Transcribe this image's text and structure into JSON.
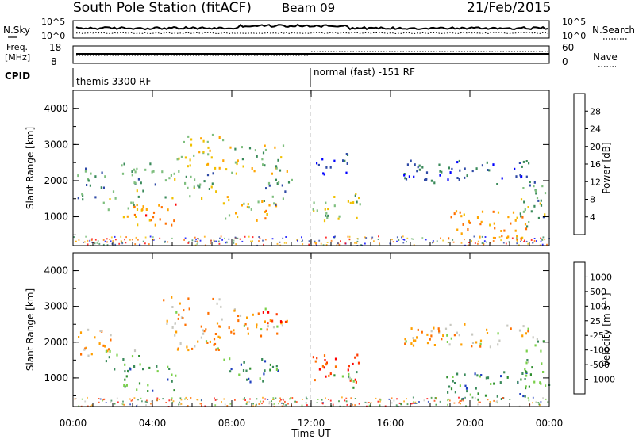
{
  "header": {
    "title": "South Pole Station (fitACF)",
    "beam": "Beam 09",
    "date": "21/Feb/2015"
  },
  "noise_panel": {
    "left_label": "N.Sky",
    "right_label": "N.Search",
    "left_ticks": [
      "10^5",
      "10^0"
    ],
    "right_ticks": [
      "10^5",
      "10^0"
    ]
  },
  "freq_panel": {
    "left_label_line1": "Freq.",
    "left_label_line2": "[MHz]",
    "right_label": "Nave",
    "left_ticks": [
      "18",
      "8"
    ],
    "right_ticks": [
      "60",
      "0"
    ]
  },
  "cpid": {
    "label": "CPID",
    "segments": [
      {
        "start_hour": 0,
        "text": "themis 3300 RF"
      },
      {
        "start_hour": 12,
        "text": "normal (fast) -151 RF"
      }
    ]
  },
  "chart_data": [
    {
      "type": "heatmap",
      "title": "",
      "ylabel": "Slant Range [km]",
      "ylim": [
        200,
        4500
      ],
      "yticks": [
        "1000",
        "2000",
        "3000",
        "4000"
      ],
      "xlim": [
        0,
        24
      ],
      "xticks": [
        "00:00",
        "04:00",
        "08:00",
        "12:00",
        "16:00",
        "20:00",
        "00:00"
      ],
      "colorbar": {
        "label": "Power [dB]",
        "ticks": [
          "28",
          "24",
          "20",
          "16",
          "12",
          "8",
          "4"
        ],
        "colors": [
          "#ff0000",
          "#ff6f00",
          "#ffa500",
          "#f0c000",
          "#7fbf7f",
          "#3a8a5a",
          "#2f4aa6",
          "#0000ff"
        ]
      },
      "regions": [
        {
          "t0": 0.2,
          "t1": 1.8,
          "r0": 1500,
          "r1": 2400,
          "level": 0.35
        },
        {
          "t0": 1.5,
          "t1": 3.5,
          "r0": 1200,
          "r1": 1800,
          "level": 0.45
        },
        {
          "t0": 2.5,
          "t1": 5.2,
          "r0": 650,
          "r1": 1400,
          "level": 0.75
        },
        {
          "t0": 2.0,
          "t1": 4.5,
          "r0": 1900,
          "r1": 2500,
          "level": 0.3
        },
        {
          "t0": 4.5,
          "t1": 7.2,
          "r0": 1500,
          "r1": 2300,
          "level": 0.4
        },
        {
          "t0": 5.2,
          "t1": 7.6,
          "r0": 2300,
          "r1": 3300,
          "level": 0.55
        },
        {
          "t0": 7.5,
          "t1": 10.2,
          "r0": 900,
          "r1": 1600,
          "level": 0.6
        },
        {
          "t0": 7.6,
          "t1": 10.8,
          "r0": 2200,
          "r1": 3000,
          "level": 0.5
        },
        {
          "t0": 9.5,
          "t1": 11.0,
          "r0": 1300,
          "r1": 2100,
          "level": 0.35
        },
        {
          "t0": 12.0,
          "t1": 14.5,
          "r0": 900,
          "r1": 1700,
          "level": 0.45
        },
        {
          "t0": 12.2,
          "t1": 14.0,
          "r0": 2200,
          "r1": 2800,
          "level": 0.2
        },
        {
          "t0": 16.5,
          "t1": 23.0,
          "r0": 1900,
          "r1": 2600,
          "level": 0.2
        },
        {
          "t0": 18.8,
          "t1": 23.0,
          "r0": 400,
          "r1": 1200,
          "level": 0.7
        },
        {
          "t0": 22.5,
          "t1": 24.0,
          "r0": 700,
          "r1": 2200,
          "level": 0.35
        }
      ]
    },
    {
      "type": "heatmap",
      "title": "",
      "ylabel": "Slant Range [km]",
      "ylim": [
        200,
        4500
      ],
      "yticks": [
        "1000",
        "2000",
        "3000",
        "4000"
      ],
      "xlim": [
        0,
        24
      ],
      "xticks": [
        "00:00",
        "04:00",
        "08:00",
        "12:00",
        "16:00",
        "20:00",
        "00:00"
      ],
      "xlabel": "Time UT",
      "colorbar": {
        "label": "Velocity [m s⁻¹]",
        "ticks": [
          "1000",
          "500",
          "100",
          "25",
          "-25",
          "-100",
          "-500",
          "-1000"
        ],
        "colors": [
          "#2040c0",
          "#3a8a5a",
          "#2f8f2f",
          "#7ad04a",
          "#c8c8c0",
          "#ff9f00",
          "#ff7000",
          "#ff3a00",
          "#ff0000"
        ]
      },
      "regions": [
        {
          "t0": 0.2,
          "t1": 2.0,
          "r0": 1500,
          "r1": 2400,
          "level": 0.35
        },
        {
          "t0": 1.5,
          "t1": 3.5,
          "r0": 1200,
          "r1": 1800,
          "level": 0.7
        },
        {
          "t0": 2.5,
          "t1": 5.2,
          "r0": 650,
          "r1": 1400,
          "level": 0.78
        },
        {
          "t0": 4.5,
          "t1": 7.5,
          "r0": 1800,
          "r1": 3300,
          "level": 0.4
        },
        {
          "t0": 7.5,
          "t1": 10.5,
          "r0": 900,
          "r1": 1600,
          "level": 0.78
        },
        {
          "t0": 7.6,
          "t1": 10.8,
          "r0": 2200,
          "r1": 3000,
          "level": 0.42
        },
        {
          "t0": 9.5,
          "t1": 10.7,
          "r0": 2400,
          "r1": 2900,
          "level": 0.05
        },
        {
          "t0": 12.0,
          "t1": 14.5,
          "r0": 900,
          "r1": 1700,
          "level": 0.15
        },
        {
          "t0": 13.0,
          "t1": 14.5,
          "r0": 700,
          "r1": 1200,
          "level": 0.7
        },
        {
          "t0": 16.5,
          "t1": 23.0,
          "r0": 1900,
          "r1": 2600,
          "level": 0.42
        },
        {
          "t0": 18.8,
          "t1": 23.0,
          "r0": 400,
          "r1": 1200,
          "level": 0.8
        },
        {
          "t0": 22.5,
          "t1": 24.0,
          "r0": 700,
          "r1": 2200,
          "level": 0.7
        }
      ]
    }
  ]
}
